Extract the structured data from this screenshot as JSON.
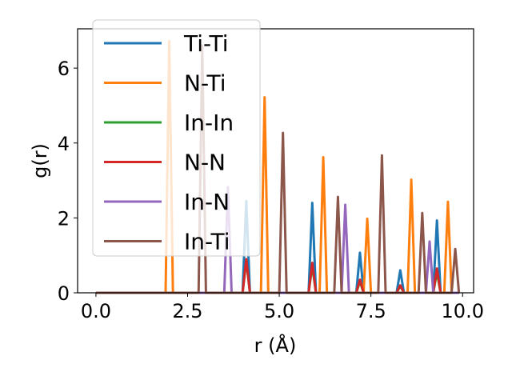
{
  "chart_data": {
    "type": "line",
    "title": "",
    "xlabel": "r (Å)",
    "ylabel": "g(r)",
    "xlim": [
      -0.5,
      10.3
    ],
    "ylim": [
      0,
      7.05
    ],
    "xticks": [
      0.0,
      2.5,
      5.0,
      7.5,
      10.0
    ],
    "xtick_labels": [
      "0.0",
      "2.5",
      "5.0",
      "7.5",
      "10.0"
    ],
    "yticks": [
      0,
      2,
      4,
      6
    ],
    "ytick_labels": [
      "0",
      "2",
      "4",
      "6"
    ],
    "legend_position": "top-left",
    "series": [
      {
        "name": "Ti-Ti",
        "color": "#1f77b4",
        "peaks": [
          [
            4.1,
            2.45
          ],
          [
            5.9,
            2.4
          ],
          [
            7.2,
            1.07
          ],
          [
            8.3,
            0.6
          ],
          [
            9.3,
            1.93
          ]
        ]
      },
      {
        "name": "N-Ti",
        "color": "#ff7f0e",
        "peaks": [
          [
            2.0,
            6.72
          ],
          [
            4.6,
            5.22
          ],
          [
            6.2,
            3.62
          ],
          [
            7.4,
            1.98
          ],
          [
            8.6,
            3.02
          ],
          [
            9.6,
            2.43
          ]
        ]
      },
      {
        "name": "In-In",
        "color": "#2ca02c",
        "peaks": [
          [
            4.1,
            0.87
          ],
          [
            5.9,
            0.72
          ],
          [
            7.2,
            0.3
          ],
          [
            8.3,
            0.18
          ],
          [
            9.3,
            0.55
          ]
        ]
      },
      {
        "name": "N-N",
        "color": "#d62728",
        "peaks": [
          [
            4.1,
            0.9
          ],
          [
            5.9,
            0.8
          ],
          [
            7.2,
            0.35
          ],
          [
            8.3,
            0.2
          ],
          [
            9.3,
            0.65
          ]
        ]
      },
      {
        "name": "In-N",
        "color": "#9467bd",
        "peaks": [
          [
            3.6,
            2.82
          ],
          [
            6.8,
            2.35
          ],
          [
            9.1,
            1.37
          ]
        ]
      },
      {
        "name": "In-Ti",
        "color": "#8c564b",
        "peaks": [
          [
            2.9,
            6.6
          ],
          [
            5.1,
            4.27
          ],
          [
            6.6,
            2.56
          ],
          [
            7.8,
            3.67
          ],
          [
            8.9,
            2.13
          ],
          [
            9.8,
            1.17
          ]
        ]
      }
    ]
  }
}
